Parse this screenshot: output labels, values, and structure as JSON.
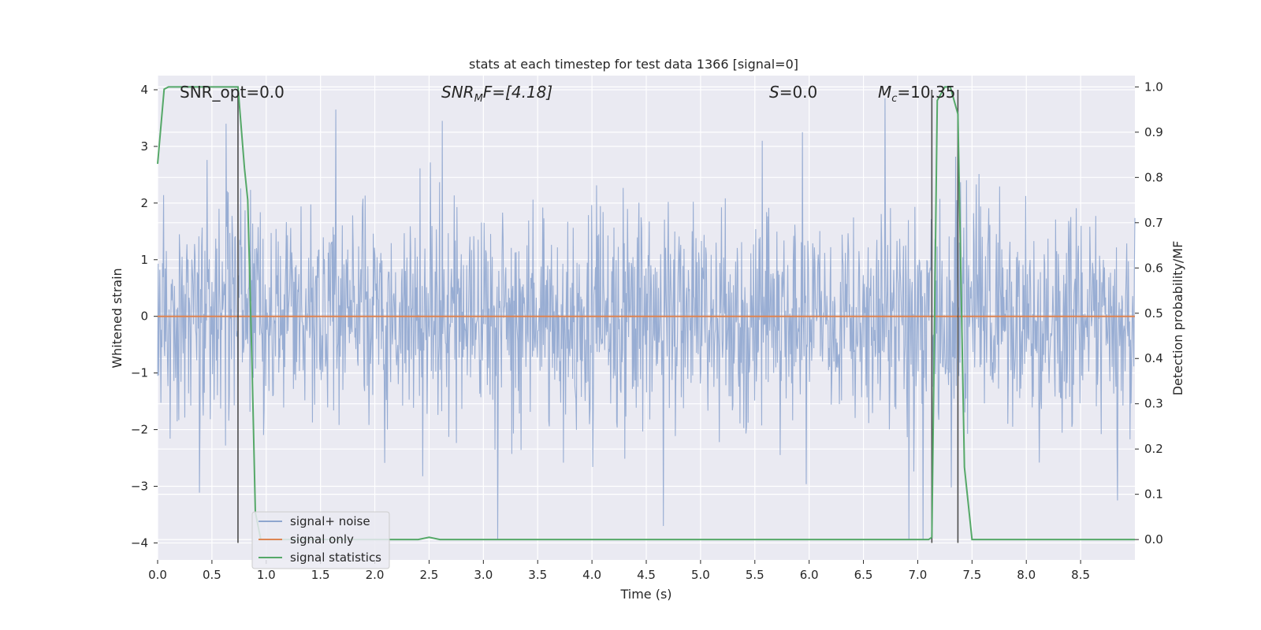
{
  "chart_data": {
    "type": "line",
    "title": "stats at each timestep for test data 1366 [signal=0]",
    "xlabel": "Time (s)",
    "ylabel_left": "Whitened strain",
    "ylabel_right": "Detection probability/MF",
    "xlim": [
      0.0,
      9.0
    ],
    "ylim_left": [
      -4.3,
      4.25
    ],
    "ylim_right": [
      -0.045,
      1.025
    ],
    "x_ticks": [
      "0.0",
      "0.5",
      "1.0",
      "1.5",
      "2.0",
      "2.5",
      "3.0",
      "3.5",
      "4.0",
      "4.5",
      "5.0",
      "5.5",
      "6.0",
      "6.5",
      "7.0",
      "7.5",
      "8.0",
      "8.5"
    ],
    "y_ticks_left": [
      "−4",
      "−3",
      "−2",
      "−1",
      "0",
      "1",
      "2",
      "3",
      "4"
    ],
    "y_ticks_right": [
      "0.0",
      "0.1",
      "0.2",
      "0.3",
      "0.4",
      "0.5",
      "0.6",
      "0.7",
      "0.8",
      "0.9",
      "1.0"
    ],
    "grid": true,
    "legend_position": "lower-left",
    "annotations": {
      "snr_opt": "SNR_opt=0.0",
      "snr_mf_main": "SNR",
      "snr_mf_sub": "M",
      "snr_mf_rest": "F=[4.18]",
      "s_main": "S",
      "s_rest": "=0.0",
      "mc_main": "M",
      "mc_sub": "c",
      "mc_rest": "=10.35"
    },
    "vertical_markers_x": [
      0.74,
      7.13,
      7.37
    ],
    "series": [
      {
        "name": "signal+ noise",
        "axis": "left",
        "color": "#8fa6cf",
        "description_range": [
          -3.95,
          3.85
        ],
        "peaks": [
          {
            "x": 0.63,
            "y": 3.4
          },
          {
            "x": 1.64,
            "y": 3.65
          },
          {
            "x": 2.62,
            "y": 3.45
          },
          {
            "x": 5.57,
            "y": 3.1
          },
          {
            "x": 5.94,
            "y": 3.25
          },
          {
            "x": 6.7,
            "y": 3.85
          },
          {
            "x": 3.13,
            "y": -3.95
          },
          {
            "x": 4.66,
            "y": -3.7
          },
          {
            "x": 6.92,
            "y": -3.95
          },
          {
            "x": 7.05,
            "y": -3.95
          },
          {
            "x": 8.84,
            "y": -3.25
          }
        ]
      },
      {
        "name": "signal only",
        "axis": "left",
        "color": "#dd8452",
        "x": [
          0.0,
          9.0
        ],
        "y": [
          0.0,
          0.0
        ]
      },
      {
        "name": "signal statistics",
        "axis": "right",
        "color": "#55a868",
        "x": [
          0.0,
          0.06,
          0.1,
          0.2,
          0.7,
          0.74,
          0.8,
          0.83,
          0.87,
          0.9,
          0.95,
          1.0,
          2.4,
          2.5,
          2.6,
          7.1,
          7.13,
          7.18,
          7.25,
          7.3,
          7.37,
          7.43,
          7.5,
          9.0
        ],
        "y": [
          0.83,
          0.995,
          1.0,
          1.0,
          1.0,
          1.0,
          0.82,
          0.75,
          0.38,
          0.06,
          0.0,
          0.0,
          0.0,
          0.005,
          0.0,
          0.0,
          0.005,
          0.97,
          1.0,
          1.0,
          0.94,
          0.16,
          0.0,
          0.0
        ]
      }
    ]
  },
  "legend": {
    "noise_label": "signal+ noise",
    "signal_label": "signal only",
    "stats_label": "signal statistics"
  },
  "colors": {
    "plot_bg": "#eaeaf2",
    "grid": "#ffffff",
    "noise": "#8fa6cf",
    "signal": "#dd8452",
    "stats": "#55a868",
    "marker": "#4c4c4c"
  }
}
